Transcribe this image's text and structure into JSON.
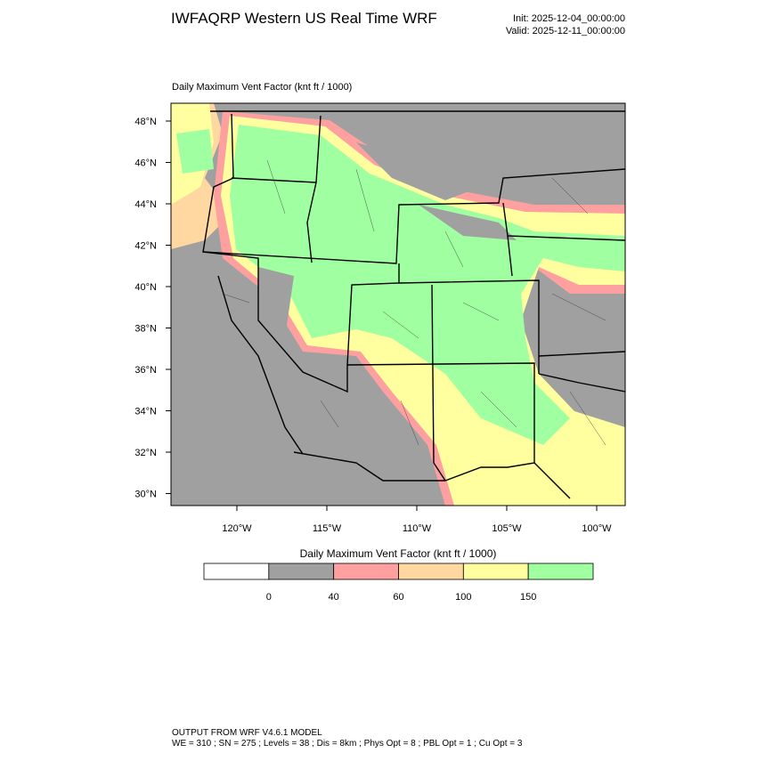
{
  "header": {
    "title": "IWFAQRP Western US Real Time WRF",
    "init": "Init: 2025-12-04_00:00:00",
    "valid": "Valid: 2025-12-11_00:00:00"
  },
  "map": {
    "title": "Daily Maximum Vent Factor   (knt ft / 1000)",
    "lat_labels": [
      "48°N",
      "46°N",
      "44°N",
      "42°N",
      "40°N",
      "38°N",
      "36°N",
      "34°N",
      "32°N",
      "30°N"
    ],
    "lon_labels": [
      "120°W",
      "115°W",
      "110°W",
      "105°W",
      "100°W"
    ]
  },
  "legend": {
    "title": "Daily Maximum Vent Factor  (knt ft / 1000)",
    "levels": [
      0,
      40,
      60,
      100,
      150
    ],
    "colors": [
      "#ffffff",
      "#a0a0a0",
      "#ffa0a0",
      "#ffd7a0",
      "#ffffa0",
      "#a0ffa0"
    ]
  },
  "footer": {
    "line1": "OUTPUT FROM WRF V4.6.1 MODEL",
    "line2": "WE = 310 ; SN = 275 ; Levels = 38 ; Dis = 8km ; Phys Opt = 8 ; PBL Opt = 1 ; Cu Opt = 3"
  }
}
